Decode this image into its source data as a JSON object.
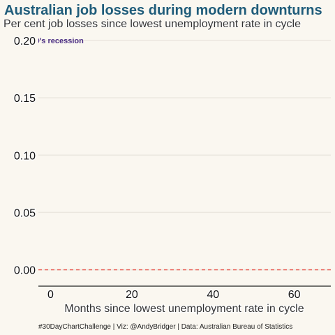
{
  "chart_data": {
    "type": "line",
    "title": "Australian job losses during modern downturns",
    "subtitle": "Per cent job losses since lowest unemployment rate in cycle",
    "xlabel": "Months since lowest unemployment rate in cycle",
    "ylabel": "",
    "xlim": [
      -3,
      69
    ],
    "ylim": [
      -0.01,
      0.2
    ],
    "x_ticks": [
      "0",
      "20",
      "40",
      "60"
    ],
    "y_ticks": [
      "0.00",
      "0.05",
      "0.10",
      "0.15",
      "0.20"
    ],
    "reference_line": {
      "y": 0,
      "style": "dashed",
      "color": "#e8574f"
    },
    "annotations": [
      {
        "text": "80's recession",
        "x": 0,
        "y": 0.2,
        "color": "#4b2e83"
      }
    ],
    "series": [],
    "grid": "horizontal",
    "caption": "#30DayChartChallenge | Viz: @AndyBridger | Data: Australian Bureau of Statistics"
  },
  "colors": {
    "title": "#1f5c7a",
    "subtitle": "#333333",
    "axis_text": "#111111",
    "gridline": "#ebe7df",
    "annotation": "#4b2e83",
    "zero_line": "#e8574f"
  }
}
